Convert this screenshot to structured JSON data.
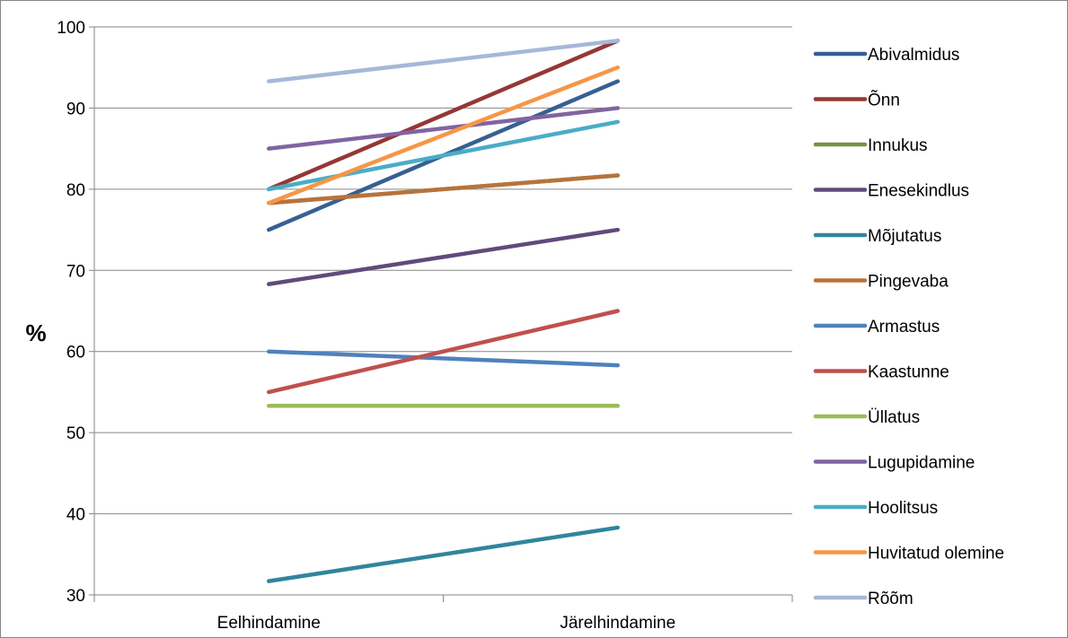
{
  "chart_data": {
    "type": "line",
    "title": "",
    "xlabel": "",
    "ylabel": "%",
    "ylim": [
      30,
      100
    ],
    "yticks": [
      30,
      40,
      50,
      60,
      70,
      80,
      90,
      100
    ],
    "categories": [
      "Eelhindamine",
      "Järelhindamine"
    ],
    "grid": true,
    "legend_position": "right",
    "series": [
      {
        "name": "Abivalmidus",
        "color": "#376092",
        "values": [
          75.0,
          93.3
        ]
      },
      {
        "name": "Õnn",
        "color": "#953735",
        "values": [
          80.0,
          98.3
        ]
      },
      {
        "name": "Innukus",
        "color": "#77933C",
        "values": [
          78.3,
          81.7
        ]
      },
      {
        "name": "Enesekindlus",
        "color": "#604A7B",
        "values": [
          68.3,
          75.0
        ]
      },
      {
        "name": "Mõjutatus",
        "color": "#31859C",
        "values": [
          31.7,
          38.3
        ]
      },
      {
        "name": "Pingevaba",
        "color": "#B8733B",
        "values": [
          78.3,
          81.7
        ]
      },
      {
        "name": "Armastus",
        "color": "#4F81BD",
        "values": [
          60.0,
          58.3
        ]
      },
      {
        "name": "Kaastunne",
        "color": "#C0504D",
        "values": [
          55.0,
          65.0
        ]
      },
      {
        "name": "Üllatus",
        "color": "#9BBB59",
        "values": [
          53.3,
          53.3
        ]
      },
      {
        "name": "Lugupidamine",
        "color": "#8064A2",
        "values": [
          85.0,
          90.0
        ]
      },
      {
        "name": "Hoolitsus",
        "color": "#4BACC6",
        "values": [
          80.0,
          88.3
        ]
      },
      {
        "name": "Huvitatud olemine",
        "color": "#F79646",
        "values": [
          78.3,
          95.0
        ]
      },
      {
        "name": "Rõõm",
        "color": "#A5B8D8",
        "values": [
          93.3,
          98.3
        ]
      }
    ]
  }
}
